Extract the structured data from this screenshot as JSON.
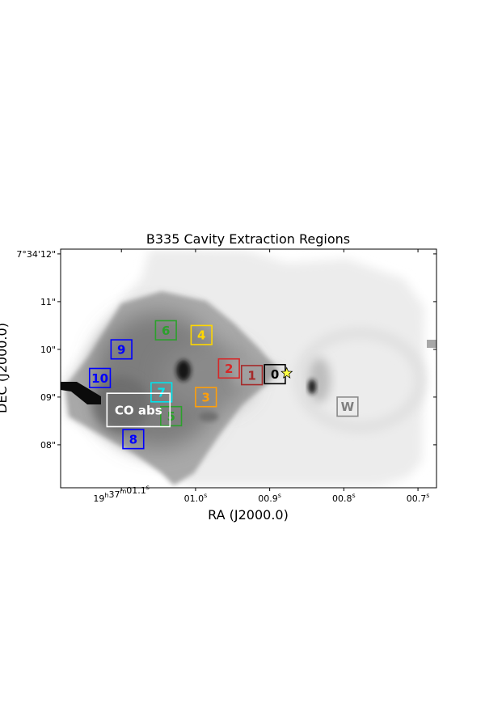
{
  "chart_data": {
    "type": "heatmap",
    "title": "B335 Cavity Extraction Regions",
    "xlabel": "RA (J2000.0)",
    "ylabel": "DEC (J2000.0)",
    "xlim_sec": [
      1.182,
      0.675
    ],
    "ylim_arcsec": [
      7.1,
      12.1
    ],
    "x_ticks": [
      {
        "value": 1.1,
        "main": "19",
        "m1": "h",
        "mid": "37",
        "m2": "m",
        "tail": "01.1",
        "m3": "s"
      },
      {
        "value": 1.0,
        "main": "",
        "m1": "",
        "mid": "",
        "m2": "",
        "tail": "01.0",
        "m3": "s"
      },
      {
        "value": 0.9,
        "main": "",
        "m1": "",
        "mid": "",
        "m2": "",
        "tail": "00.9",
        "m3": "s"
      },
      {
        "value": 0.8,
        "main": "",
        "m1": "",
        "mid": "",
        "m2": "",
        "tail": "00.8",
        "m3": "s"
      },
      {
        "value": 0.7,
        "main": "",
        "m1": "",
        "mid": "",
        "m2": "",
        "tail": "00.7",
        "m3": "s"
      }
    ],
    "y_ticks": [
      {
        "value": 12,
        "label": "7°34'12\""
      },
      {
        "value": 11,
        "label": "11\""
      },
      {
        "value": 10,
        "label": "10\""
      },
      {
        "value": 9,
        "label": "09\""
      },
      {
        "value": 8,
        "label": "08\""
      }
    ],
    "regions": [
      {
        "label": "0",
        "ra": 0.893,
        "dec": 9.48,
        "w": 0.028,
        "h": 0.4,
        "color": "#000000"
      },
      {
        "label": "1",
        "ra": 0.924,
        "dec": 9.46,
        "w": 0.028,
        "h": 0.4,
        "color": "#a52a2a"
      },
      {
        "label": "2",
        "ra": 0.955,
        "dec": 9.6,
        "w": 0.028,
        "h": 0.4,
        "color": "#d62728"
      },
      {
        "label": "3",
        "ra": 0.986,
        "dec": 9.0,
        "w": 0.028,
        "h": 0.4,
        "color": "#ff9f0a"
      },
      {
        "label": "4",
        "ra": 0.992,
        "dec": 10.3,
        "w": 0.028,
        "h": 0.4,
        "color": "#ffd700"
      },
      {
        "label": "5",
        "ra": 1.033,
        "dec": 8.6,
        "w": 0.028,
        "h": 0.4,
        "color": "#2ca02c"
      },
      {
        "label": "6",
        "ra": 1.04,
        "dec": 10.4,
        "w": 0.028,
        "h": 0.4,
        "color": "#2ca02c"
      },
      {
        "label": "7",
        "ra": 1.046,
        "dec": 9.1,
        "w": 0.028,
        "h": 0.4,
        "color": "#00e5ee"
      },
      {
        "label": "8",
        "ra": 1.084,
        "dec": 8.12,
        "w": 0.028,
        "h": 0.4,
        "color": "#0000ff"
      },
      {
        "label": "9",
        "ra": 1.1,
        "dec": 10.0,
        "w": 0.028,
        "h": 0.4,
        "color": "#0000ff"
      },
      {
        "label": "10",
        "ra": 1.129,
        "dec": 9.4,
        "w": 0.028,
        "h": 0.4,
        "color": "#0000ff"
      },
      {
        "label": "W",
        "ra": 0.795,
        "dec": 8.8,
        "w": 0.028,
        "h": 0.4,
        "color": "#808080"
      },
      {
        "label": "CO abs",
        "ra": 1.077,
        "dec": 8.73,
        "w": 0.085,
        "h": 0.7,
        "color": "#ffffff"
      }
    ],
    "star": {
      "ra": 0.877,
      "dec": 9.5,
      "color": "#ffff44"
    }
  }
}
